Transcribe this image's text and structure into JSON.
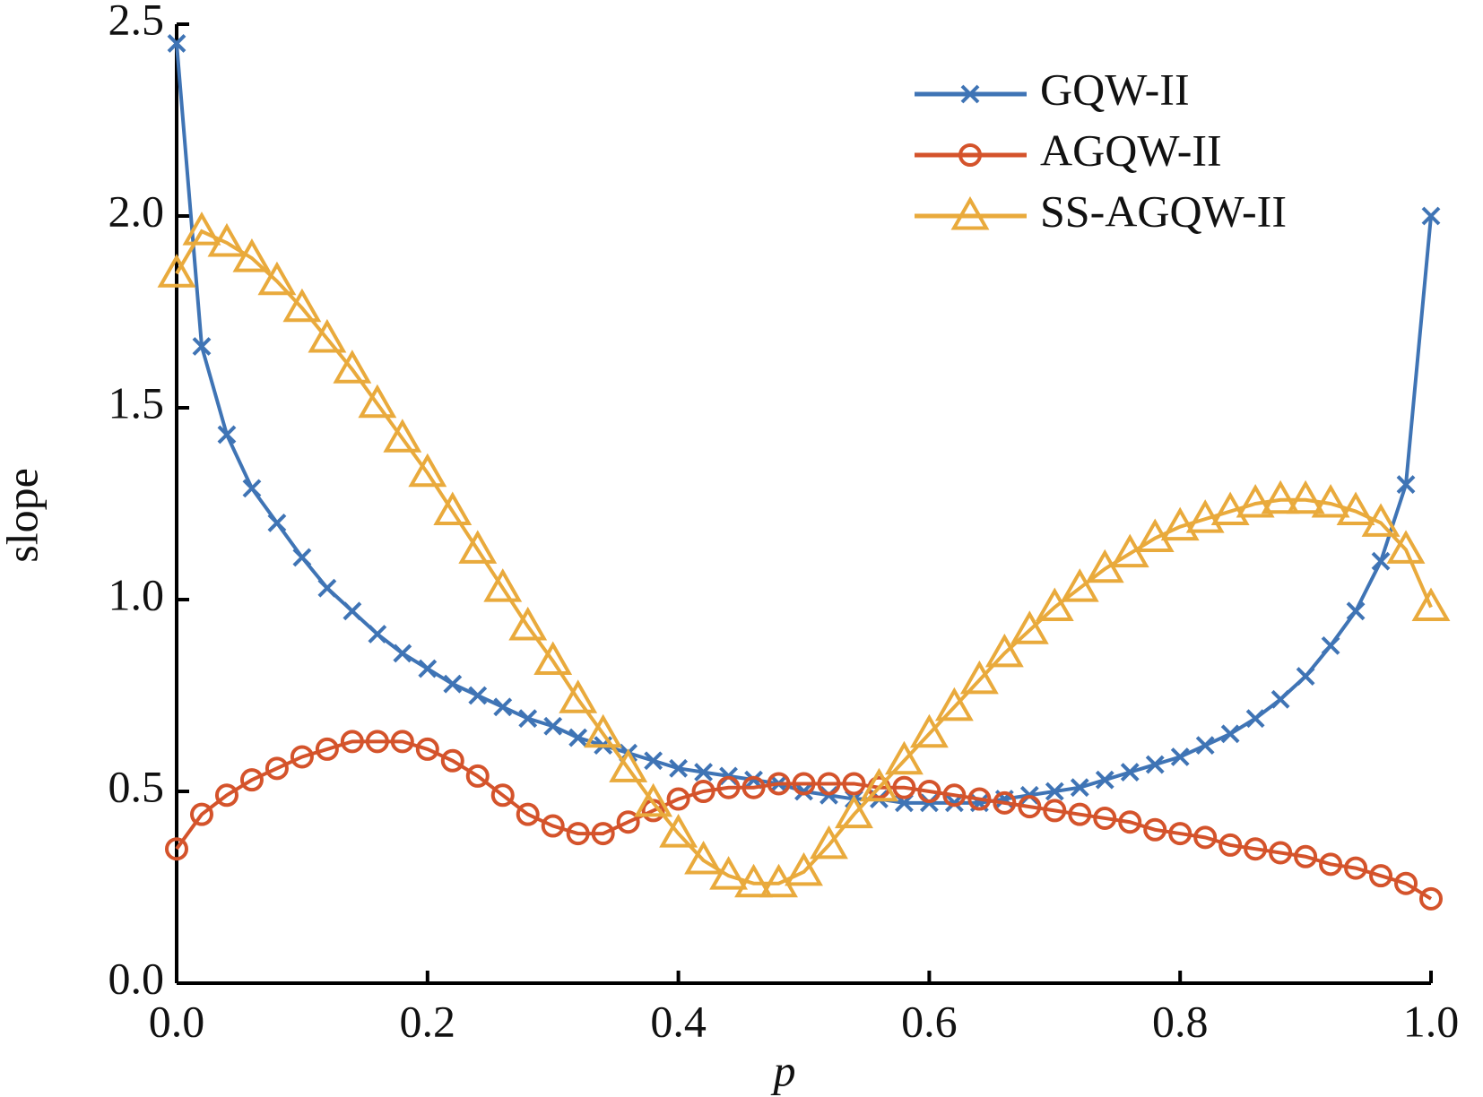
{
  "chart_data": {
    "type": "line",
    "x_label": "p",
    "y_label": "slope",
    "x": [
      0,
      0.02,
      0.04,
      0.06,
      0.08,
      0.1,
      0.12,
      0.14,
      0.16,
      0.18,
      0.2,
      0.22,
      0.24,
      0.26,
      0.28,
      0.3,
      0.32,
      0.34,
      0.36,
      0.38,
      0.4,
      0.42,
      0.44,
      0.46,
      0.48,
      0.5,
      0.52,
      0.54,
      0.56,
      0.58,
      0.6,
      0.62,
      0.64,
      0.66,
      0.68,
      0.7,
      0.72,
      0.74,
      0.76,
      0.78,
      0.8,
      0.82,
      0.84,
      0.86,
      0.88,
      0.9,
      0.92,
      0.94,
      0.96,
      0.98,
      1
    ],
    "series": [
      {
        "name": "GQW-II",
        "color": "#3f74b5",
        "marker": "x",
        "values": [
          2.45,
          1.66,
          1.43,
          1.29,
          1.2,
          1.11,
          1.03,
          0.97,
          0.91,
          0.86,
          0.82,
          0.78,
          0.75,
          0.72,
          0.69,
          0.67,
          0.64,
          0.62,
          0.6,
          0.58,
          0.56,
          0.55,
          0.54,
          0.53,
          0.52,
          0.5,
          0.49,
          0.48,
          0.48,
          0.47,
          0.47,
          0.47,
          0.47,
          0.48,
          0.49,
          0.5,
          0.51,
          0.53,
          0.55,
          0.57,
          0.59,
          0.62,
          0.65,
          0.69,
          0.74,
          0.8,
          0.88,
          0.97,
          1.1,
          1.3,
          2.0
        ]
      },
      {
        "name": "AGQW-II",
        "color": "#d4532b",
        "marker": "circle",
        "values": [
          0.35,
          0.44,
          0.49,
          0.53,
          0.56,
          0.59,
          0.61,
          0.63,
          0.63,
          0.63,
          0.61,
          0.58,
          0.54,
          0.49,
          0.44,
          0.41,
          0.39,
          0.39,
          0.42,
          0.45,
          0.48,
          0.5,
          0.51,
          0.51,
          0.52,
          0.52,
          0.52,
          0.52,
          0.51,
          0.51,
          0.5,
          0.49,
          0.48,
          0.47,
          0.46,
          0.45,
          0.44,
          0.43,
          0.42,
          0.4,
          0.39,
          0.38,
          0.36,
          0.35,
          0.34,
          0.33,
          0.31,
          0.3,
          0.28,
          0.26,
          0.22
        ]
      },
      {
        "name": "SS-AGQW-II",
        "color": "#e9aa3c",
        "marker": "triangle",
        "values": [
          1.85,
          1.96,
          1.93,
          1.89,
          1.83,
          1.76,
          1.68,
          1.6,
          1.51,
          1.42,
          1.33,
          1.23,
          1.13,
          1.03,
          0.93,
          0.84,
          0.74,
          0.65,
          0.56,
          0.47,
          0.39,
          0.32,
          0.28,
          0.26,
          0.26,
          0.29,
          0.36,
          0.44,
          0.51,
          0.58,
          0.65,
          0.72,
          0.79,
          0.86,
          0.92,
          0.98,
          1.03,
          1.08,
          1.12,
          1.16,
          1.19,
          1.21,
          1.23,
          1.25,
          1.26,
          1.26,
          1.25,
          1.23,
          1.2,
          1.13,
          0.98
        ]
      }
    ],
    "xlim": [
      0,
      1
    ],
    "xticks": [
      {
        "value": 0,
        "label": "0.0"
      },
      0.2,
      0.4,
      0.6,
      0.8,
      {
        "value": 1,
        "label": "1.0"
      }
    ],
    "ylim": [
      0,
      2.5
    ],
    "yticks": [
      {
        "value": 0,
        "label": "0.0"
      },
      0.5,
      {
        "value": 1,
        "label": "1.0"
      },
      1.5,
      {
        "value": 2,
        "label": "2.0"
      },
      2.5
    ],
    "legend": "upper right",
    "grid": false
  }
}
